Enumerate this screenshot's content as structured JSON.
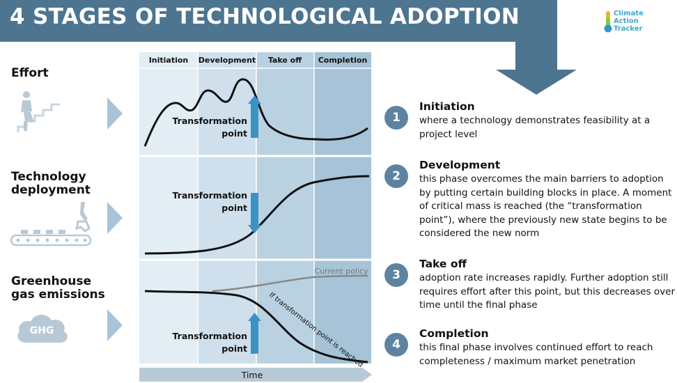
{
  "header": {
    "title": "4 STAGES OF TECHNOLOGICAL ADOPTION"
  },
  "logo": {
    "line1": "Climate",
    "line2": "Action",
    "line3": "Tracker",
    "icon": "thermometer-icon"
  },
  "rows": [
    {
      "label_line1": "Effort",
      "label_line2": "",
      "icon": "person-climbing-stairs-icon"
    },
    {
      "label_line1": "Technology",
      "label_line2": "deployment",
      "icon": "conveyor-belt-robot-arm-icon"
    },
    {
      "label_line1": "Greenhouse",
      "label_line2": "gas emissions",
      "icon": "ghg-cloud-icon"
    }
  ],
  "ghg_cloud_text": "GHG",
  "phases": [
    "Initiation",
    "Development",
    "Take off",
    "Completion"
  ],
  "transformation_label": {
    "line1": "Transformation",
    "line2": "point"
  },
  "current_policy_label": "Current policy",
  "transformation_reached_label": "If transformation point is reached",
  "time_label": "Time",
  "stages": [
    {
      "number": "1",
      "title": "Initiation",
      "description": "where a technology demonstrates feasibility at a project level"
    },
    {
      "number": "2",
      "title": "Development",
      "description": "this phase overcomes the main barriers to adoption by putting certain building blocks in place. A moment of critical mass is reached (the “transformation point”), where the previously new state begins to be considered the new norm"
    },
    {
      "number": "3",
      "title": "Take off",
      "description": "adoption rate increases rapidly. Further adoption still requires effort after this point, but this decreases over time until the final phase"
    },
    {
      "number": "4",
      "title": "Completion",
      "description": "this final phase involves continued effort to reach completeness / maximum market penetration"
    }
  ],
  "colors": {
    "banner": "#4d7590",
    "phase_initiation": "#e3edf4",
    "phase_development": "#cfe0ec",
    "phase_takeoff": "#bad1e2",
    "phase_completion": "#a6c3d8",
    "arrow_blue": "#3b93c3",
    "chevron": "#a9c4d9",
    "number_circle": "#5e83a0"
  }
}
